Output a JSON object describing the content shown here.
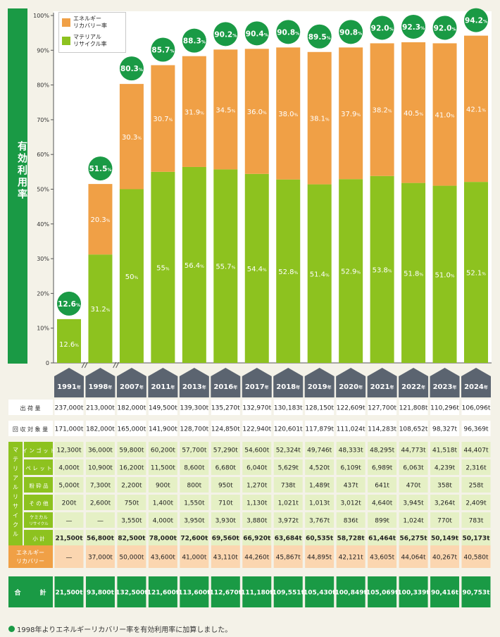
{
  "y_axis_title": "有効利用率",
  "legend": [
    {
      "label": "エネルギー\nリカバリー率",
      "color": "#f0a046"
    },
    {
      "label": "マテリアル\nリサイクル率",
      "color": "#8dc21f"
    }
  ],
  "chart_data": {
    "type": "bar",
    "stacked": true,
    "categories": [
      "1991年",
      "1998年",
      "2007年",
      "2011年",
      "2013年",
      "2016年",
      "2017年",
      "2018年",
      "2019年",
      "2020年",
      "2021年",
      "2022年",
      "2023年",
      "2024年"
    ],
    "series": [
      {
        "name": "マテリアルリサイクル率",
        "color": "#8dc21f",
        "values": [
          12.6,
          31.2,
          50,
          55,
          56.4,
          55.7,
          54.4,
          52.8,
          51.4,
          52.9,
          53.8,
          51.8,
          51.0,
          52.1
        ],
        "labels": [
          "12.6",
          "31.2",
          "50",
          "55",
          "56.4",
          "55.7",
          "54.4",
          "52.8",
          "51.4",
          "52.9",
          "53.8",
          "51.8",
          "51.0",
          "52.1"
        ]
      },
      {
        "name": "エネルギーリカバリー率",
        "color": "#f0a046",
        "values": [
          0,
          20.3,
          30.3,
          30.7,
          31.9,
          34.5,
          36.0,
          38.0,
          38.1,
          37.9,
          38.2,
          40.5,
          41.0,
          42.1
        ],
        "labels": [
          "",
          "20.3",
          "30.3",
          "30.7",
          "31.9",
          "34.5",
          "36.0",
          "38.0",
          "38.1",
          "37.9",
          "38.2",
          "40.5",
          "41.0",
          "42.1"
        ]
      }
    ],
    "totals": [
      "12.6",
      "51.5",
      "80.3",
      "85.7",
      "88.3",
      "90.2",
      "90.4",
      "90.8",
      "89.5",
      "90.8",
      "92.0",
      "92.3",
      "92.0",
      "94.2"
    ],
    "unit": "%",
    "ylim": [
      0,
      100
    ],
    "yticks": [
      "0",
      "10%",
      "20%",
      "30%",
      "40%",
      "50%",
      "60%",
      "70%",
      "80%",
      "90%",
      "100%"
    ],
    "grid": false,
    "axis_breaks_after": [
      "1991年",
      "1998年"
    ],
    "legend_position": "top-left"
  },
  "table": {
    "rows": [
      {
        "label": "出荷量",
        "values": [
          "237,000t",
          "213,000t",
          "182,000t",
          "149,500t",
          "139,300t",
          "135,270t",
          "132,970t",
          "130,183t",
          "128,150t",
          "122,609t",
          "127,700t",
          "121,808t",
          "110,296t",
          "106,096t"
        ]
      },
      {
        "label": "回収対象量",
        "values": [
          "171,000t",
          "182,000t",
          "165,000t",
          "141,900t",
          "128,700t",
          "124,850t",
          "122,940t",
          "120,601t",
          "117,879t",
          "111,024t",
          "114,283t",
          "108,652t",
          "98,327t",
          "96,369t"
        ]
      }
    ],
    "group_label": "マテリアルリサイクル",
    "material_rows": [
      {
        "label": "インゴット",
        "values": [
          "12,300t",
          "36,000t",
          "59,800t",
          "60,200t",
          "57,700t",
          "57,290t",
          "54,600t",
          "52,324t",
          "49,746t",
          "48,333t",
          "48,295t",
          "44,773t",
          "41,518t",
          "44,407t"
        ]
      },
      {
        "label": "ペレット",
        "values": [
          "4,000t",
          "10,900t",
          "16,200t",
          "11,500t",
          "8,600t",
          "6,680t",
          "6,040t",
          "5,629t",
          "4,520t",
          "6,109t",
          "6,989t",
          "6,063t",
          "4,239t",
          "2,316t"
        ]
      },
      {
        "label": "粉砕品",
        "values": [
          "5,000t",
          "7,300t",
          "2,200t",
          "900t",
          "800t",
          "950t",
          "1,270t",
          "738t",
          "1,489t",
          "437t",
          "641t",
          "470t",
          "358t",
          "258t"
        ]
      },
      {
        "label": "その他",
        "values": [
          "200t",
          "2,600t",
          "750t",
          "1,400t",
          "1,550t",
          "710t",
          "1,130t",
          "1,021t",
          "1,013t",
          "3,012t",
          "4,640t",
          "3,945t",
          "3,264t",
          "2,409t"
        ]
      },
      {
        "label": "ケミカルリサイクル",
        "values": [
          "—",
          "—",
          "3,550t",
          "4,000t",
          "3,950t",
          "3,930t",
          "3,880t",
          "3,972t",
          "3,767t",
          "836t",
          "899t",
          "1,024t",
          "770t",
          "783t"
        ]
      },
      {
        "label": "小計",
        "values": [
          "21,500t",
          "56,800t",
          "82,500t",
          "78,000t",
          "72,600t",
          "69,560t",
          "66,920t",
          "63,684t",
          "60,535t",
          "58,728t",
          "61,464t",
          "56,275t",
          "50,149t",
          "50,173t"
        ]
      }
    ],
    "energy_row": {
      "label": "エネルギーリカバリー",
      "values": [
        "—",
        "37,000t",
        "50,000t",
        "43,600t",
        "41,000t",
        "43,110t",
        "44,260t",
        "45,867t",
        "44,895t",
        "42,121t",
        "43,605t",
        "44,064t",
        "40,267t",
        "40,580t"
      ]
    },
    "total_row": {
      "label": "合計",
      "values": [
        "21,500t",
        "93,800t",
        "132,500t",
        "121,600t",
        "113,600t",
        "112,670t",
        "111,180t",
        "109,551t",
        "105,430t",
        "100,849t",
        "105,069t",
        "100,339t",
        "90,416t",
        "90,753t"
      ]
    }
  },
  "footnote": "1998年よりエネルギーリカバリー率を有効利用率に加算しました。"
}
